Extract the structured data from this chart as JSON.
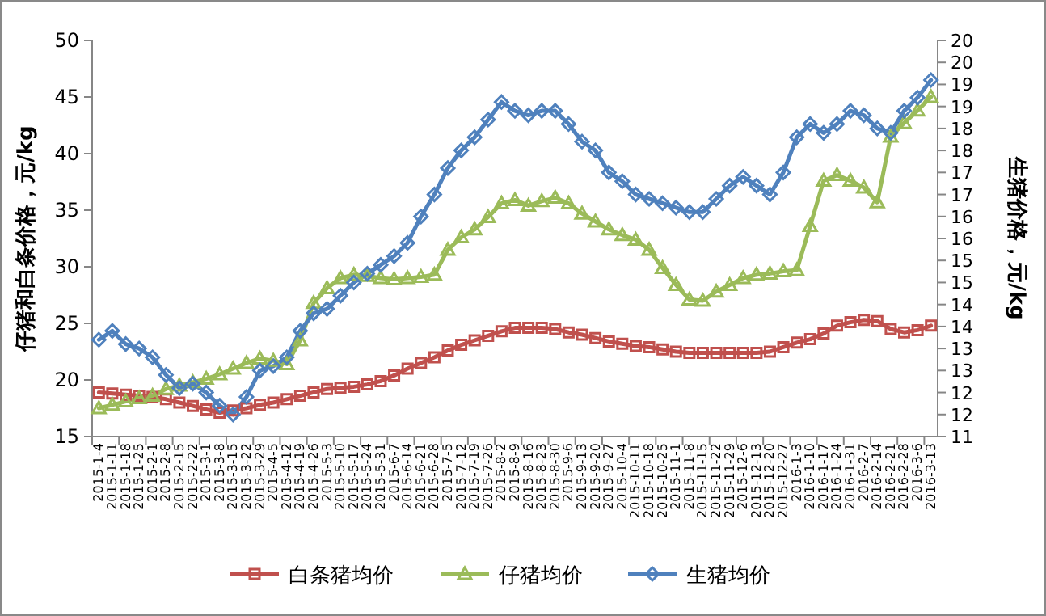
{
  "chart_data": {
    "type": "line",
    "ylabel": "仔猪和白条价格，元/kg",
    "y2label": "生猪价格，元/kg",
    "categories": [
      "2015-1-4",
      "2015-1-11",
      "2015-1-18",
      "2015-1-25",
      "2015-2-1",
      "2015-2-8",
      "2015-2-15",
      "2015-2-22",
      "2015-3-1",
      "2015-3-8",
      "2015-3-15",
      "2015-3-22",
      "2015-3-29",
      "2015-4-5",
      "2015-4-12",
      "2015-4-19",
      "2015-4-26",
      "2015-5-3",
      "2015-5-10",
      "2015-5-17",
      "2015-5-24",
      "2015-5-31",
      "2015-6-7",
      "2015-6-14",
      "2015-6-21",
      "2015-6-28",
      "2015-7-5",
      "2015-7-12",
      "2015-7-19",
      "2015-7-26",
      "2015-8-2",
      "2015-8-9",
      "2015-8-16",
      "2015-8-23",
      "2015-8-30",
      "2015-9-6",
      "2015-9-13",
      "2015-9-20",
      "2015-9-27",
      "2015-10-4",
      "2015-10-11",
      "2015-10-18",
      "2015-10-25",
      "2015-11-1",
      "2015-11-8",
      "2015-11-15",
      "2015-11-22",
      "2015-11-29",
      "2015-12-6",
      "2015-12-13",
      "2015-12-20",
      "2015-12-27",
      "2016-1-3",
      "2016-1-10",
      "2016-1-17",
      "2016-1-24",
      "2016-1-31",
      "2016-2-7",
      "2016-2-14",
      "2016-2-21",
      "2016-2-28",
      "2016-3-6",
      "2016-3-13"
    ],
    "series": [
      {
        "name": "白条猪均价",
        "color": "#c0504d",
        "marker": "square",
        "values": [
          18.9,
          18.8,
          18.7,
          18.6,
          18.5,
          18.3,
          18.0,
          17.7,
          17.4,
          17.1,
          17.3,
          17.5,
          17.8,
          18.0,
          18.3,
          18.6,
          18.9,
          19.2,
          19.3,
          19.4,
          19.6,
          19.9,
          20.4,
          21.0,
          21.5,
          22.0,
          22.6,
          23.1,
          23.5,
          23.9,
          24.3,
          24.6,
          24.6,
          24.6,
          24.5,
          24.2,
          24.0,
          23.7,
          23.4,
          23.2,
          23.0,
          22.9,
          22.7,
          22.5,
          22.4,
          22.4,
          22.4,
          22.4,
          22.4,
          22.4,
          22.5,
          22.9,
          23.3,
          23.6,
          24.1,
          24.8,
          25.1,
          25.3,
          25.2,
          24.5,
          24.2,
          24.4,
          24.8
        ]
      },
      {
        "name": "仔猪均价",
        "color": "#9bbb59",
        "marker": "triangle",
        "values": [
          17.5,
          17.8,
          18.1,
          18.4,
          18.6,
          19.2,
          19.5,
          19.8,
          20.1,
          20.5,
          21.0,
          21.5,
          21.9,
          21.7,
          21.4,
          23.5,
          26.8,
          28.1,
          29.0,
          29.3,
          29.2,
          29.0,
          28.9,
          29.0,
          29.1,
          29.3,
          31.5,
          32.6,
          33.3,
          34.4,
          35.6,
          35.9,
          35.4,
          35.8,
          36.1,
          35.6,
          34.7,
          34.0,
          33.3,
          32.8,
          32.4,
          31.5,
          29.9,
          28.4,
          27.1,
          27.0,
          27.8,
          28.4,
          29.0,
          29.3,
          29.4,
          29.6,
          29.7,
          33.6,
          37.6,
          38.1,
          37.6,
          37.0,
          35.7,
          41.5,
          42.7,
          43.8,
          45.0
        ]
      },
      {
        "name": "生猪均价",
        "color": "#4f81bd",
        "marker": "diamond",
        "axis": "y2",
        "values": [
          13.2,
          13.4,
          13.1,
          13.0,
          12.8,
          12.4,
          12.1,
          12.2,
          12.0,
          11.7,
          11.5,
          11.9,
          12.5,
          12.6,
          12.8,
          13.4,
          13.8,
          13.9,
          14.2,
          14.5,
          14.7,
          14.9,
          15.1,
          15.4,
          16.0,
          16.5,
          17.1,
          17.5,
          17.8,
          18.2,
          18.6,
          18.4,
          18.3,
          18.4,
          18.4,
          18.1,
          17.7,
          17.5,
          17.0,
          16.8,
          16.5,
          16.4,
          16.3,
          16.2,
          16.1,
          16.1,
          16.4,
          16.7,
          16.9,
          16.7,
          16.5,
          17.0,
          17.8,
          18.1,
          17.9,
          18.1,
          18.4,
          18.3,
          18.0,
          17.9,
          18.4,
          18.7,
          19.1
        ]
      }
    ],
    "ylim": [
      15,
      50
    ],
    "yticks": [
      15,
      20,
      25,
      30,
      35,
      40,
      45,
      50
    ],
    "y2lim": [
      11,
      20
    ],
    "y2ticks": [
      11,
      {
        "value": 11.5,
        "label": "12"
      },
      12,
      {
        "value": 12.5,
        "label": "13"
      },
      13,
      {
        "value": 13.5,
        "label": "14"
      },
      14,
      {
        "value": 14.5,
        "label": "15"
      },
      15,
      {
        "value": 15.5,
        "label": "16"
      },
      16,
      {
        "value": 16.5,
        "label": "17"
      },
      17,
      {
        "value": 17.5,
        "label": "18"
      },
      18,
      {
        "value": 18.5,
        "label": "19"
      },
      19,
      {
        "value": 19.5,
        "label": "20"
      },
      20
    ],
    "legend": "bottom",
    "grid": false,
    "line_style": "solid"
  }
}
